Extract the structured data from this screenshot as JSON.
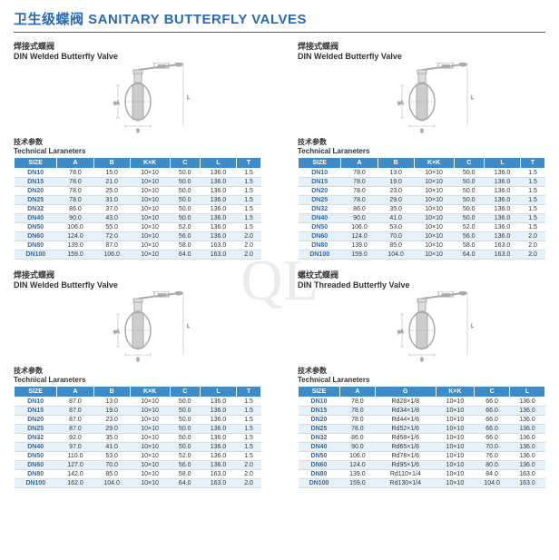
{
  "main_title": "卫生级蝶阀 SANITARY BUTTERFLY VALVES",
  "watermark": "QL",
  "blocks": [
    {
      "subtitle_cn": "焊接式蝶阀",
      "subtitle_en": "DIN Welded Butterfly Valve",
      "params_cn": "技术参数",
      "params_en": "Technical Laraneters",
      "headers": [
        "SIZE",
        "A",
        "B",
        "K×K",
        "C",
        "L",
        "T"
      ],
      "rows": [
        [
          "DN10",
          "78.0",
          "15.0",
          "10×10",
          "50.0",
          "136.0",
          "1.5"
        ],
        [
          "DN15",
          "78.0",
          "21.0",
          "10×10",
          "50.0",
          "136.0",
          "1.5"
        ],
        [
          "DN20",
          "78.0",
          "25.0",
          "10×10",
          "50.0",
          "136.0",
          "1.5"
        ],
        [
          "DN25",
          "78.0",
          "31.0",
          "10×10",
          "50.0",
          "136.0",
          "1.5"
        ],
        [
          "DN32",
          "86.0",
          "37.0",
          "10×10",
          "50.0",
          "136.0",
          "1.5"
        ],
        [
          "DN40",
          "90.0",
          "43.0",
          "10×10",
          "50.0",
          "136.0",
          "1.5"
        ],
        [
          "DN50",
          "106.0",
          "55.0",
          "10×10",
          "52.0",
          "136.0",
          "1.5"
        ],
        [
          "DN60",
          "124.0",
          "72.0",
          "10×10",
          "56.0",
          "136.0",
          "2.0"
        ],
        [
          "DN80",
          "139.0",
          "87.0",
          "10×10",
          "58.0",
          "163.0",
          "2.0"
        ],
        [
          "DN100",
          "159.0",
          "106.0",
          "10×10",
          "64.0",
          "163.0",
          "2.0"
        ]
      ],
      "col_colors": [
        "#2a6ab5",
        "#333",
        "#333",
        "#333",
        "#333",
        "#333",
        "#333"
      ]
    },
    {
      "subtitle_cn": "焊接式蝶阀",
      "subtitle_en": "DIN Welded Butterfly Valve",
      "params_cn": "技术参数",
      "params_en": "Technical Laraneters",
      "headers": [
        "SIZE",
        "A",
        "B",
        "K×K",
        "C",
        "L",
        "T"
      ],
      "rows": [
        [
          "DN10",
          "78.0",
          "13.0",
          "10×10",
          "50.0",
          "136.0",
          "1.5"
        ],
        [
          "DN15",
          "78.0",
          "19.0",
          "10×10",
          "50.0",
          "136.0",
          "1.5"
        ],
        [
          "DN20",
          "78.0",
          "23.0",
          "10×10",
          "50.0",
          "136.0",
          "1.5"
        ],
        [
          "DN25",
          "78.0",
          "29.0",
          "10×10",
          "50.0",
          "136.0",
          "1.5"
        ],
        [
          "DN32",
          "86.0",
          "35.0",
          "10×10",
          "50.0",
          "136.0",
          "1.5"
        ],
        [
          "DN40",
          "90.0",
          "41.0",
          "10×10",
          "50.0",
          "136.0",
          "1.5"
        ],
        [
          "DN50",
          "106.0",
          "53.0",
          "10×10",
          "52.0",
          "136.0",
          "1.5"
        ],
        [
          "DN60",
          "124.0",
          "70.0",
          "10×10",
          "56.0",
          "136.0",
          "2.0"
        ],
        [
          "DN80",
          "139.0",
          "85.0",
          "10×10",
          "58.0",
          "163.0",
          "2.0"
        ],
        [
          "DN100",
          "159.0",
          "104.0",
          "10×10",
          "64.0",
          "163.0",
          "2.0"
        ]
      ],
      "col_colors": [
        "#2a6ab5",
        "#333",
        "#333",
        "#333",
        "#333",
        "#333",
        "#333"
      ]
    },
    {
      "subtitle_cn": "焊接式蝶阀",
      "subtitle_en": "DIN Welded Butterfly Valve",
      "params_cn": "技术参数",
      "params_en": "Technical Laraneters",
      "headers": [
        "SIZE",
        "A",
        "B",
        "K×K",
        "C",
        "L",
        "T"
      ],
      "rows": [
        [
          "DN10",
          "87.0",
          "13.0",
          "10×10",
          "50.0",
          "136.0",
          "1.5"
        ],
        [
          "DN15",
          "87.0",
          "19.0",
          "10×10",
          "50.0",
          "136.0",
          "1.5"
        ],
        [
          "DN20",
          "87.0",
          "23.0",
          "10×10",
          "50.0",
          "136.0",
          "1.5"
        ],
        [
          "DN25",
          "87.0",
          "29.0",
          "10×10",
          "50.0",
          "136.0",
          "1.5"
        ],
        [
          "DN32",
          "92.0",
          "35.0",
          "10×10",
          "50.0",
          "136.0",
          "1.5"
        ],
        [
          "DN40",
          "97.0",
          "41.0",
          "10×10",
          "50.0",
          "136.0",
          "1.5"
        ],
        [
          "DN50",
          "110.0",
          "53.0",
          "10×10",
          "52.0",
          "136.0",
          "1.5"
        ],
        [
          "DN60",
          "127.0",
          "70.0",
          "10×10",
          "56.0",
          "136.0",
          "2.0"
        ],
        [
          "DN80",
          "142.0",
          "85.0",
          "10×10",
          "58.0",
          "163.0",
          "2.0"
        ],
        [
          "DN100",
          "162.0",
          "104.0",
          "10×10",
          "64.0",
          "163.0",
          "2.0"
        ]
      ],
      "col_colors": [
        "#2a6ab5",
        "#333",
        "#333",
        "#333",
        "#333",
        "#333",
        "#333"
      ]
    },
    {
      "subtitle_cn": "螺纹式蝶阀",
      "subtitle_en": "DIN Threaded  Butterfly Valve",
      "params_cn": "技术参数",
      "params_en": "Technical Laraneters",
      "headers": [
        "SIZE",
        "A",
        "G",
        "K×K",
        "C",
        "L"
      ],
      "rows": [
        [
          "DN10",
          "78.0",
          "Rd28×1/8",
          "10×10",
          "66.0",
          "136.0"
        ],
        [
          "DN15",
          "78.0",
          "Rd34×1/8",
          "10×10",
          "66.0",
          "136.0"
        ],
        [
          "DN20",
          "78.0",
          "Rd44×1/6",
          "10×10",
          "66.0",
          "136.0"
        ],
        [
          "DN25",
          "78.0",
          "Rd52×1/6",
          "10×10",
          "66.0",
          "136.0"
        ],
        [
          "DN32",
          "86.0",
          "Rd58×1/6",
          "10×10",
          "66.0",
          "136.0"
        ],
        [
          "DN40",
          "90.0",
          "Rd65×1/6",
          "10×10",
          "70.0",
          "136.0"
        ],
        [
          "DN50",
          "106.0",
          "Rd78×1/6",
          "10×10",
          "76.0",
          "136.0"
        ],
        [
          "DN60",
          "124.0",
          "Rd95×1/6",
          "10×10",
          "80.0",
          "136.0"
        ],
        [
          "DN80",
          "139.0",
          "Rd110×1/4",
          "10×10",
          "84.0",
          "163.0"
        ],
        [
          "DN100",
          "159.0",
          "Rd130×1/4",
          "10×10",
          "104.0",
          "163.0"
        ]
      ],
      "col_colors": [
        "#2a6ab5",
        "#333",
        "#333",
        "#333",
        "#333",
        "#333"
      ]
    }
  ],
  "diagram_color": "#aaa",
  "table_header_bg": "#3c8cc9",
  "row_even_bg": "#e6f2fa",
  "row_odd_bg": "#ffffff"
}
